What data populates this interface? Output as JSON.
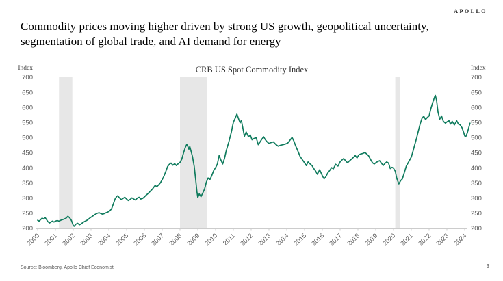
{
  "logo": "APOLLO",
  "slide_title": "Commodity prices moving higher driven by strong US growth, geopolitical uncertainty, segmentation of global trade, and AI demand for energy",
  "footer": {
    "source": "Source: Bloomberg, Apollo Chief Economist",
    "page_number": "3"
  },
  "chart_data": {
    "type": "line",
    "title": "CRB US Spot Commodity Index",
    "y_axis_label_left": "Index",
    "y_axis_label_right": "Index",
    "ylim": [
      200,
      700
    ],
    "xlim": [
      2000,
      2024.5
    ],
    "y_ticks": [
      700,
      650,
      600,
      550,
      500,
      450,
      400,
      350,
      300,
      250,
      200
    ],
    "x_ticks": [
      2000,
      2001,
      2002,
      2003,
      2004,
      2005,
      2006,
      2007,
      2008,
      2009,
      2010,
      2011,
      2012,
      2013,
      2014,
      2015,
      2016,
      2017,
      2018,
      2019,
      2020,
      2021,
      2022,
      2023,
      2024
    ],
    "grid": false,
    "legend": "none",
    "line_color": "#0f7b5d",
    "recession_band_color": "#e7e7e7",
    "axis_color": "#cccccc",
    "tick_text_color": "#595959",
    "recession_bands": [
      [
        2001.2,
        2001.95
      ],
      [
        2008.0,
        2009.5
      ],
      [
        2020.1,
        2020.35
      ]
    ],
    "series": [
      {
        "name": "CRB US Spot Commodity Index",
        "points": [
          [
            2000.0,
            227
          ],
          [
            2000.08,
            224
          ],
          [
            2000.17,
            229
          ],
          [
            2000.25,
            234
          ],
          [
            2000.33,
            231
          ],
          [
            2000.42,
            236
          ],
          [
            2000.5,
            229
          ],
          [
            2000.58,
            222
          ],
          [
            2000.67,
            218
          ],
          [
            2000.75,
            221
          ],
          [
            2000.83,
            224
          ],
          [
            2000.92,
            221
          ],
          [
            2001.0,
            224
          ],
          [
            2001.1,
            226
          ],
          [
            2001.2,
            224
          ],
          [
            2001.3,
            227
          ],
          [
            2001.4,
            229
          ],
          [
            2001.5,
            231
          ],
          [
            2001.6,
            234
          ],
          [
            2001.7,
            240
          ],
          [
            2001.8,
            235
          ],
          [
            2001.9,
            226
          ],
          [
            2002.0,
            210
          ],
          [
            2002.05,
            207
          ],
          [
            2002.15,
            214
          ],
          [
            2002.25,
            217
          ],
          [
            2002.35,
            212
          ],
          [
            2002.45,
            215
          ],
          [
            2002.55,
            220
          ],
          [
            2002.65,
            223
          ],
          [
            2002.75,
            226
          ],
          [
            2002.85,
            230
          ],
          [
            2002.95,
            235
          ],
          [
            2003.05,
            239
          ],
          [
            2003.15,
            243
          ],
          [
            2003.25,
            247
          ],
          [
            2003.35,
            250
          ],
          [
            2003.45,
            252
          ],
          [
            2003.55,
            249
          ],
          [
            2003.65,
            247
          ],
          [
            2003.75,
            249
          ],
          [
            2003.85,
            252
          ],
          [
            2003.95,
            254
          ],
          [
            2004.05,
            258
          ],
          [
            2004.15,
            264
          ],
          [
            2004.25,
            280
          ],
          [
            2004.35,
            297
          ],
          [
            2004.45,
            306
          ],
          [
            2004.5,
            308
          ],
          [
            2004.6,
            301
          ],
          [
            2004.7,
            295
          ],
          [
            2004.8,
            299
          ],
          [
            2004.9,
            303
          ],
          [
            2005.0,
            297
          ],
          [
            2005.1,
            292
          ],
          [
            2005.2,
            296
          ],
          [
            2005.3,
            301
          ],
          [
            2005.4,
            297
          ],
          [
            2005.5,
            294
          ],
          [
            2005.6,
            300
          ],
          [
            2005.7,
            303
          ],
          [
            2005.8,
            297
          ],
          [
            2005.9,
            299
          ],
          [
            2006.0,
            304
          ],
          [
            2006.1,
            310
          ],
          [
            2006.2,
            315
          ],
          [
            2006.3,
            321
          ],
          [
            2006.4,
            327
          ],
          [
            2006.5,
            334
          ],
          [
            2006.6,
            342
          ],
          [
            2006.7,
            338
          ],
          [
            2006.8,
            344
          ],
          [
            2006.9,
            351
          ],
          [
            2007.0,
            361
          ],
          [
            2007.1,
            373
          ],
          [
            2007.2,
            388
          ],
          [
            2007.3,
            404
          ],
          [
            2007.4,
            412
          ],
          [
            2007.5,
            416
          ],
          [
            2007.6,
            409
          ],
          [
            2007.7,
            414
          ],
          [
            2007.8,
            408
          ],
          [
            2007.9,
            414
          ],
          [
            2008.0,
            418
          ],
          [
            2008.1,
            429
          ],
          [
            2008.2,
            450
          ],
          [
            2008.3,
            468
          ],
          [
            2008.38,
            478
          ],
          [
            2008.45,
            470
          ],
          [
            2008.5,
            462
          ],
          [
            2008.55,
            471
          ],
          [
            2008.62,
            456
          ],
          [
            2008.7,
            438
          ],
          [
            2008.8,
            405
          ],
          [
            2008.88,
            362
          ],
          [
            2008.95,
            322
          ],
          [
            2009.0,
            302
          ],
          [
            2009.08,
            314
          ],
          [
            2009.18,
            305
          ],
          [
            2009.28,
            317
          ],
          [
            2009.38,
            330
          ],
          [
            2009.48,
            353
          ],
          [
            2009.58,
            367
          ],
          [
            2009.68,
            361
          ],
          [
            2009.78,
            374
          ],
          [
            2009.9,
            392
          ],
          [
            2010.0,
            401
          ],
          [
            2010.1,
            413
          ],
          [
            2010.2,
            441
          ],
          [
            2010.3,
            426
          ],
          [
            2010.4,
            413
          ],
          [
            2010.5,
            431
          ],
          [
            2010.6,
            457
          ],
          [
            2010.75,
            487
          ],
          [
            2010.88,
            517
          ],
          [
            2011.0,
            551
          ],
          [
            2011.1,
            564
          ],
          [
            2011.2,
            578
          ],
          [
            2011.3,
            561
          ],
          [
            2011.38,
            549
          ],
          [
            2011.45,
            557
          ],
          [
            2011.55,
            527
          ],
          [
            2011.62,
            504
          ],
          [
            2011.72,
            519
          ],
          [
            2011.85,
            503
          ],
          [
            2011.95,
            509
          ],
          [
            2012.05,
            493
          ],
          [
            2012.15,
            497
          ],
          [
            2012.28,
            500
          ],
          [
            2012.4,
            477
          ],
          [
            2012.5,
            486
          ],
          [
            2012.6,
            495
          ],
          [
            2012.7,
            503
          ],
          [
            2012.8,
            493
          ],
          [
            2012.9,
            486
          ],
          [
            2013.0,
            481
          ],
          [
            2013.12,
            484
          ],
          [
            2013.25,
            486
          ],
          [
            2013.4,
            477
          ],
          [
            2013.52,
            472
          ],
          [
            2013.65,
            475
          ],
          [
            2013.8,
            477
          ],
          [
            2013.92,
            479
          ],
          [
            2014.05,
            482
          ],
          [
            2014.15,
            489
          ],
          [
            2014.3,
            501
          ],
          [
            2014.4,
            489
          ],
          [
            2014.5,
            473
          ],
          [
            2014.62,
            457
          ],
          [
            2014.75,
            438
          ],
          [
            2014.88,
            427
          ],
          [
            2015.0,
            417
          ],
          [
            2015.1,
            408
          ],
          [
            2015.2,
            420
          ],
          [
            2015.32,
            413
          ],
          [
            2015.42,
            408
          ],
          [
            2015.52,
            398
          ],
          [
            2015.62,
            390
          ],
          [
            2015.72,
            379
          ],
          [
            2015.85,
            394
          ],
          [
            2015.95,
            381
          ],
          [
            2016.02,
            372
          ],
          [
            2016.1,
            364
          ],
          [
            2016.2,
            371
          ],
          [
            2016.3,
            383
          ],
          [
            2016.42,
            392
          ],
          [
            2016.52,
            401
          ],
          [
            2016.62,
            397
          ],
          [
            2016.75,
            412
          ],
          [
            2016.88,
            406
          ],
          [
            2017.0,
            420
          ],
          [
            2017.1,
            426
          ],
          [
            2017.2,
            431
          ],
          [
            2017.32,
            423
          ],
          [
            2017.42,
            417
          ],
          [
            2017.52,
            423
          ],
          [
            2017.62,
            428
          ],
          [
            2017.75,
            435
          ],
          [
            2017.85,
            441
          ],
          [
            2017.95,
            433
          ],
          [
            2018.05,
            443
          ],
          [
            2018.15,
            446
          ],
          [
            2018.28,
            448
          ],
          [
            2018.4,
            451
          ],
          [
            2018.5,
            446
          ],
          [
            2018.6,
            440
          ],
          [
            2018.7,
            429
          ],
          [
            2018.82,
            417
          ],
          [
            2018.92,
            413
          ],
          [
            2019.02,
            418
          ],
          [
            2019.12,
            421
          ],
          [
            2019.22,
            424
          ],
          [
            2019.32,
            416
          ],
          [
            2019.42,
            408
          ],
          [
            2019.52,
            415
          ],
          [
            2019.62,
            420
          ],
          [
            2019.72,
            416
          ],
          [
            2019.82,
            398
          ],
          [
            2019.92,
            402
          ],
          [
            2020.0,
            399
          ],
          [
            2020.1,
            389
          ],
          [
            2020.18,
            366
          ],
          [
            2020.3,
            347
          ],
          [
            2020.4,
            358
          ],
          [
            2020.5,
            364
          ],
          [
            2020.6,
            383
          ],
          [
            2020.72,
            406
          ],
          [
            2020.85,
            420
          ],
          [
            2021.0,
            436
          ],
          [
            2021.1,
            456
          ],
          [
            2021.2,
            478
          ],
          [
            2021.3,
            499
          ],
          [
            2021.4,
            523
          ],
          [
            2021.5,
            546
          ],
          [
            2021.6,
            564
          ],
          [
            2021.7,
            571
          ],
          [
            2021.8,
            560
          ],
          [
            2021.9,
            567
          ],
          [
            2022.0,
            572
          ],
          [
            2022.1,
            596
          ],
          [
            2022.2,
            616
          ],
          [
            2022.3,
            633
          ],
          [
            2022.35,
            640
          ],
          [
            2022.42,
            624
          ],
          [
            2022.5,
            585
          ],
          [
            2022.6,
            561
          ],
          [
            2022.7,
            572
          ],
          [
            2022.8,
            554
          ],
          [
            2022.92,
            548
          ],
          [
            2023.02,
            553
          ],
          [
            2023.12,
            556
          ],
          [
            2023.2,
            545
          ],
          [
            2023.3,
            554
          ],
          [
            2023.42,
            542
          ],
          [
            2023.55,
            556
          ],
          [
            2023.65,
            545
          ],
          [
            2023.75,
            542
          ],
          [
            2023.85,
            533
          ],
          [
            2023.95,
            516
          ],
          [
            2024.0,
            506
          ],
          [
            2024.06,
            503
          ],
          [
            2024.15,
            516
          ],
          [
            2024.22,
            531
          ],
          [
            2024.3,
            548
          ]
        ]
      }
    ]
  }
}
